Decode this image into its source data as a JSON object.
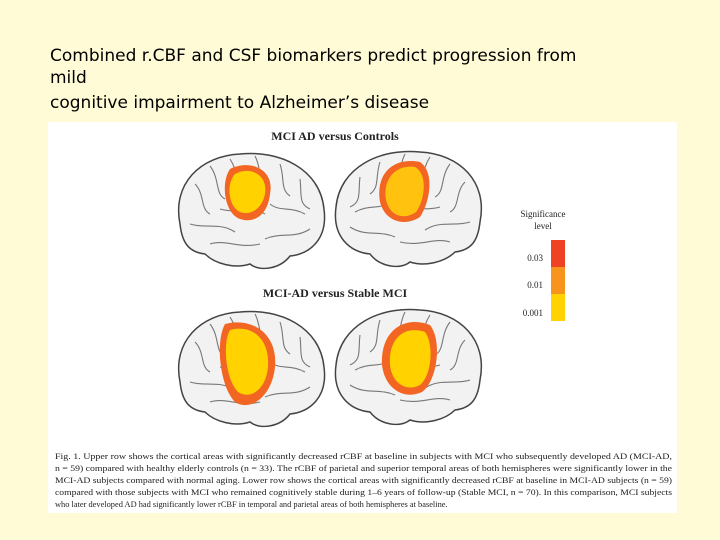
{
  "slide": {
    "title_lines": [
      "Combined r.CBF and CSF biomarkers predict progression from",
      "mild",
      "cognitive impairment to Alzheimer’s disease"
    ]
  },
  "figure": {
    "panel_titles": [
      "MCI AD versus Controls",
      "MCI-AD versus Stable MCI"
    ],
    "legend": {
      "title_lines": [
        "Significance",
        "level"
      ],
      "levels": [
        "0.03",
        "0.01",
        "0.001"
      ]
    },
    "caption_lines": [
      "Fig. 1. Upper row shows the cortical areas with significantly decreased rCBF at baseline in subjects with MCI who subsequently developed AD (MCI-AD,",
      "n = 59) compared with healthy elderly controls (n = 33). The rCBF of parietal and superior temporal areas of both hemispheres were significantly lower in the",
      "MCI-AD subjects compared with normal aging. Lower row shows the cortical areas with significantly decreased rCBF at baseline in MCI-AD subjects (n = 59)",
      "compared with those subjects with MCI who remained cognitively stable during 1–6 years of follow-up (Stable MCI, n = 70). In this comparison, MCI subjects",
      "who later developed AD had significantly lower rCBF in temporal and parietal areas of both hemispheres at baseline."
    ]
  }
}
